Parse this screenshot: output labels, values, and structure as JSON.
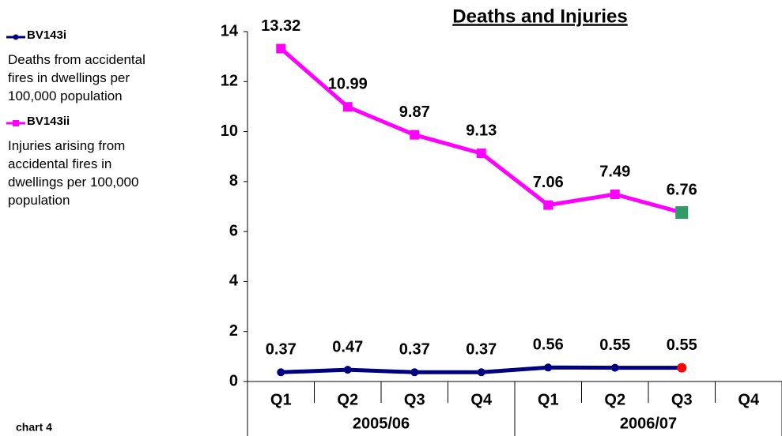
{
  "chart_data": {
    "type": "line",
    "title": "Deaths and Injuries",
    "footnote": "chart 4",
    "categories": [
      "Q1",
      "Q2",
      "Q3",
      "Q4",
      "Q1",
      "Q2",
      "Q3",
      "Q4"
    ],
    "groups": [
      "2005/06",
      "2006/07"
    ],
    "series": [
      {
        "name": "BV143i",
        "description": "Deaths from accidental fires in dwellings per 100,000 population",
        "color": "#000080",
        "marker": "circle",
        "last_marker_color": "#ff0000",
        "values": [
          0.37,
          0.47,
          0.37,
          0.37,
          0.56,
          0.55,
          0.55,
          null
        ]
      },
      {
        "name": "BV143ii",
        "description": "Injuries arising from accidental fires in dwellings per 100,000 population",
        "color": "#ff00ff",
        "marker": "square",
        "last_marker_color": "#339966",
        "values": [
          13.32,
          10.99,
          9.87,
          9.13,
          7.06,
          7.49,
          6.76,
          null
        ]
      }
    ],
    "ylim": [
      0,
      14
    ],
    "yticks": [
      0,
      2,
      4,
      6,
      8,
      10,
      12,
      14
    ],
    "grid": false
  }
}
